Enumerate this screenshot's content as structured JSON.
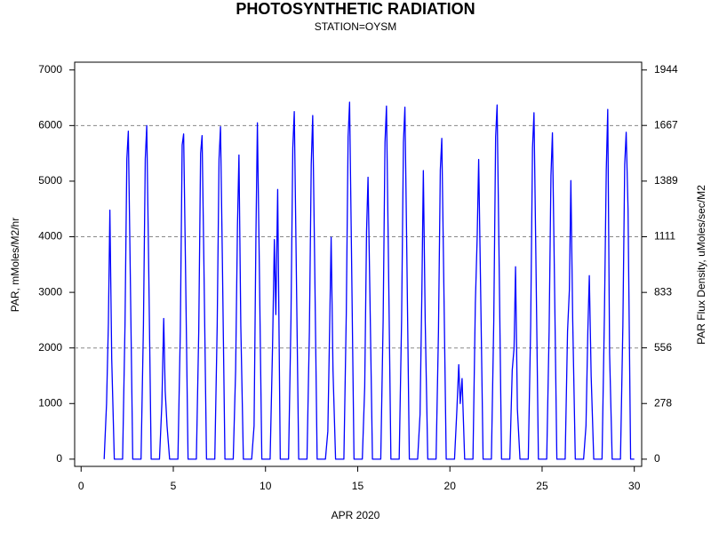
{
  "chart_data": {
    "type": "line",
    "title": "PHOTOSYNTHETIC RADIATION",
    "subtitle": "STATION=OYSM",
    "xlabel": "APR 2020",
    "ylabel": "PAR, mMoles/M2/hr",
    "y2label": "PAR Flux Density, uMoles/sec/M2",
    "xlim": [
      -0.35,
      30.4
    ],
    "xticks": [
      0,
      5,
      10,
      15,
      20,
      25,
      30
    ],
    "ylim": [
      -130,
      7140
    ],
    "yticks": [
      0,
      1000,
      2000,
      3000,
      4000,
      5000,
      6000,
      7000
    ],
    "y2lim": [
      -36,
      1983
    ],
    "y2ticks": [
      0,
      278,
      556,
      833,
      1111,
      1389,
      1667,
      1944
    ],
    "ygrid": [
      2000,
      4000,
      6000
    ],
    "x": [
      1.25,
      1.38,
      1.48,
      1.56,
      1.66,
      1.8,
      2.25,
      2.38,
      2.48,
      2.56,
      2.66,
      2.8,
      3.25,
      3.38,
      3.48,
      3.56,
      3.66,
      3.8,
      4.25,
      4.38,
      4.48,
      4.56,
      4.66,
      4.8,
      5.25,
      5.38,
      5.48,
      5.56,
      5.66,
      5.8,
      6.25,
      6.38,
      6.48,
      6.56,
      6.66,
      6.8,
      7.25,
      7.38,
      7.48,
      7.56,
      7.66,
      7.8,
      8.25,
      8.38,
      8.48,
      8.56,
      8.66,
      8.8,
      9.25,
      9.38,
      9.48,
      9.56,
      9.66,
      9.8,
      10.25,
      10.38,
      10.48,
      10.56,
      10.66,
      10.8,
      11.25,
      11.38,
      11.48,
      11.56,
      11.66,
      11.8,
      12.25,
      12.38,
      12.48,
      12.56,
      12.66,
      12.8,
      13.25,
      13.38,
      13.48,
      13.56,
      13.66,
      13.8,
      14.25,
      14.38,
      14.48,
      14.56,
      14.66,
      14.8,
      15.25,
      15.38,
      15.48,
      15.56,
      15.66,
      15.8,
      16.25,
      16.38,
      16.48,
      16.56,
      16.66,
      16.8,
      17.25,
      17.38,
      17.48,
      17.56,
      17.66,
      17.8,
      18.25,
      18.38,
      18.48,
      18.56,
      18.66,
      18.8,
      19.25,
      19.38,
      19.48,
      19.56,
      19.66,
      19.8,
      20.25,
      20.38,
      20.48,
      20.56,
      20.66,
      20.8,
      21.25,
      21.38,
      21.48,
      21.56,
      21.66,
      21.8,
      22.25,
      22.38,
      22.48,
      22.56,
      22.66,
      22.8,
      23.25,
      23.38,
      23.48,
      23.56,
      23.66,
      23.8,
      24.25,
      24.38,
      24.48,
      24.56,
      24.66,
      24.8,
      25.25,
      25.38,
      25.48,
      25.56,
      25.66,
      25.8,
      26.25,
      26.38,
      26.48,
      26.56,
      26.66,
      26.8,
      27.25,
      27.38,
      27.48,
      27.56,
      27.66,
      27.8,
      28.25,
      28.38,
      28.48,
      28.56,
      28.66,
      28.8,
      29.25,
      29.38,
      29.48,
      29.56,
      29.66,
      29.8,
      30
    ],
    "series": [
      {
        "name": "PAR",
        "color": "#0000ff",
        "values": [
          0,
          1000,
          2450,
          4480,
          1800,
          0,
          0,
          2400,
          5400,
          5900,
          3500,
          0,
          0,
          2400,
          5400,
          6000,
          3600,
          0,
          0,
          1000,
          2530,
          1230,
          600,
          0,
          0,
          2300,
          5650,
          5850,
          3500,
          0,
          0,
          2300,
          5500,
          5820,
          3500,
          0,
          0,
          2400,
          5400,
          5980,
          3600,
          0,
          0,
          1600,
          4200,
          5470,
          2400,
          0,
          0,
          600,
          4000,
          6050,
          3600,
          0,
          0,
          2000,
          3950,
          2600,
          4850,
          0,
          0,
          2500,
          5600,
          6250,
          3700,
          0,
          0,
          2300,
          5300,
          6180,
          3700,
          0,
          0,
          500,
          2400,
          3990,
          1600,
          0,
          0,
          2600,
          5800,
          6420,
          3800,
          0,
          0,
          1300,
          4100,
          5070,
          3000,
          0,
          0,
          2500,
          5700,
          6350,
          3800,
          0,
          0,
          2500,
          5700,
          6330,
          3800,
          0,
          0,
          800,
          3000,
          5190,
          2500,
          0,
          0,
          2300,
          5200,
          5770,
          3400,
          0,
          0,
          900,
          1700,
          1000,
          1450,
          0,
          0,
          2800,
          4000,
          5390,
          3200,
          0,
          0,
          2500,
          5800,
          6370,
          3800,
          0,
          0,
          1600,
          2000,
          3460,
          900,
          0,
          0,
          2400,
          5600,
          6230,
          3700,
          0,
          0,
          2300,
          5100,
          5870,
          3500,
          0,
          0,
          2300,
          3050,
          5010,
          2500,
          0,
          0,
          600,
          2300,
          3300,
          1500,
          0,
          0,
          2600,
          5200,
          6290,
          1900,
          0,
          0,
          2400,
          5300,
          5880,
          4500,
          0,
          0
        ]
      }
    ]
  }
}
